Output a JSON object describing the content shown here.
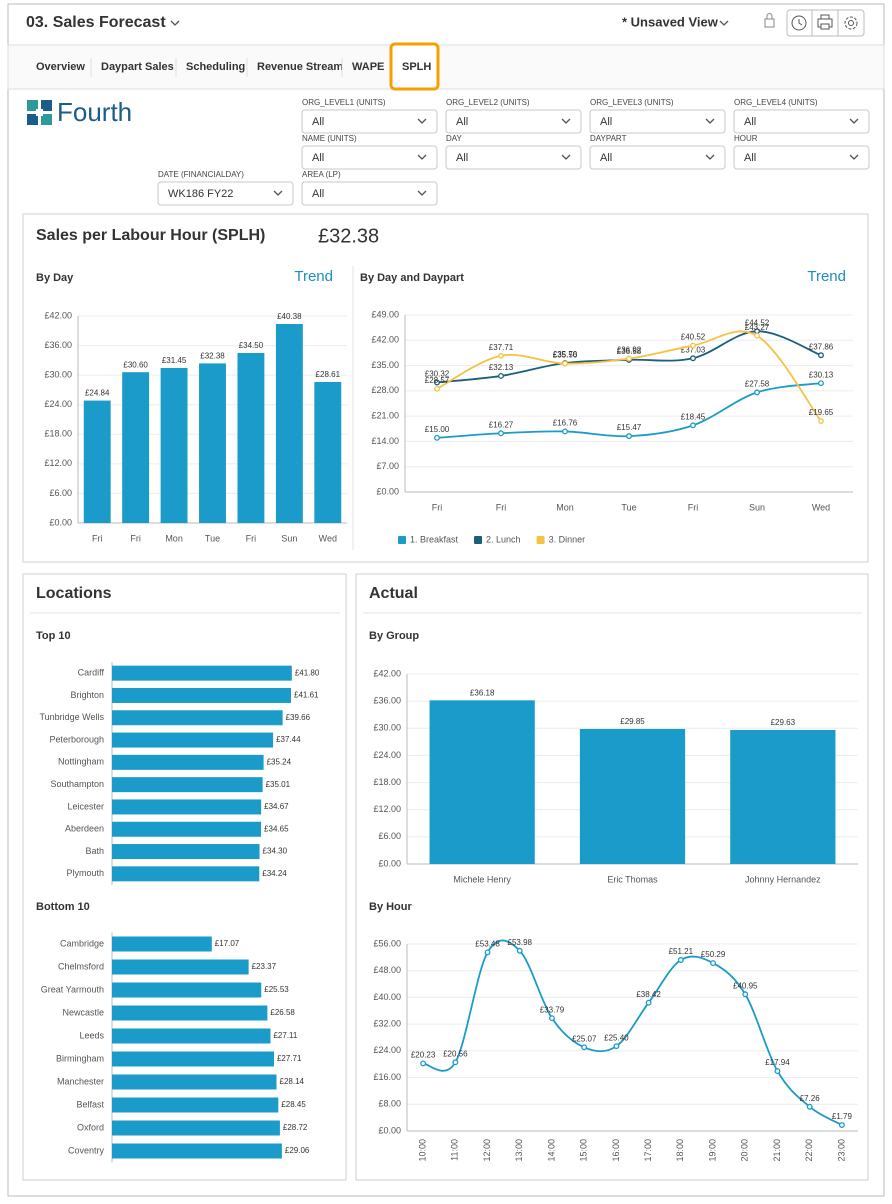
{
  "header": {
    "title": "03. Sales Forecast",
    "view": "* Unsaved View"
  },
  "tabs": [
    "Overview",
    "Daypart Sales",
    "Scheduling",
    "Revenue Stream",
    "WAPE",
    "SPLH"
  ],
  "logo": {
    "text": "Fourth"
  },
  "filters": [
    {
      "label": "ORG_LEVEL1 (UNITS)",
      "value": "All"
    },
    {
      "label": "ORG_LEVEL2 (UNITS)",
      "value": "All"
    },
    {
      "label": "ORG_LEVEL3 (UNITS)",
      "value": "All"
    },
    {
      "label": "ORG_LEVEL4 (UNITS)",
      "value": "All"
    },
    {
      "label": "NAME (UNITS)",
      "value": "All"
    },
    {
      "label": "DAY",
      "value": "All"
    },
    {
      "label": "DAYPART",
      "value": "All"
    },
    {
      "label": "HOUR",
      "value": "All"
    },
    {
      "label": "DATE (FINANCIALDAY)",
      "value": "WK186 FY22"
    },
    {
      "label": "AREA (LP)",
      "value": "All"
    }
  ],
  "panels": [
    {
      "title": "Sales per Labour Hour (SPLH)",
      "value": "£32.38"
    },
    {
      "title": "Locations"
    },
    {
      "title": "Actual"
    }
  ],
  "chart_data": [
    {
      "type": "bar",
      "title": "By Day",
      "link": "Trend",
      "color": "#1a9bc9",
      "categories": [
        "Fri",
        "Fri",
        "Mon",
        "Tue",
        "Fri",
        "Sun",
        "Wed"
      ],
      "values": [
        24.84,
        30.6,
        31.45,
        32.38,
        34.5,
        40.38,
        28.61
      ],
      "value_labels": [
        "£24.84",
        "£30.60",
        "£31.45",
        "£32.38",
        "£34.50",
        "£40.38",
        "£28.61"
      ],
      "ylim": [
        0,
        42
      ],
      "yticks": [
        {
          "value": 0,
          "label": "£0.00"
        },
        {
          "value": 6,
          "label": "£6.00"
        },
        {
          "value": 12,
          "label": "£12.00"
        },
        {
          "value": 18,
          "label": "£18.00"
        },
        {
          "value": 24,
          "label": "£24.00"
        },
        {
          "value": 30,
          "label": "£30.00"
        },
        {
          "value": 36,
          "label": "£36.00"
        },
        {
          "value": 42,
          "label": "£42.00"
        }
      ],
      "grid": true
    },
    {
      "type": "line",
      "title": "By Day and Daypart",
      "link": "Trend",
      "smooth": true,
      "categories": [
        "Fri",
        "Fri",
        "Mon",
        "Tue",
        "Fri",
        "Sun",
        "Wed"
      ],
      "series": [
        {
          "name": "1. Breakfast",
          "color": "#1a9bc9",
          "values": [
            15.0,
            16.27,
            16.76,
            15.47,
            18.45,
            27.58,
            30.13
          ],
          "value_labels": [
            "£15.00",
            "£16.27",
            "£16.76",
            "£15.47",
            "£18.45",
            "£27.58",
            "£30.13"
          ]
        },
        {
          "name": "2. Lunch",
          "color": "#1b5f7c",
          "values": [
            30.32,
            32.13,
            35.7,
            36.58,
            37.03,
            44.52,
            37.86
          ],
          "value_labels": [
            "£30.32",
            "£32.13",
            "£35.70",
            "£36.58",
            "£37.03",
            "£44.52",
            "£37.86"
          ]
        },
        {
          "name": "3. Dinner",
          "color": "#f5c242",
          "values": [
            28.57,
            37.71,
            35.56,
            36.92,
            40.52,
            43.27,
            19.65
          ],
          "value_labels": [
            "£28.57",
            "£37.71",
            "£35.56",
            "£36.92",
            "£40.52",
            "£43.27",
            "£19.65"
          ]
        }
      ],
      "ylim": [
        0,
        49
      ],
      "yticks": [
        {
          "value": 0,
          "label": "£0.00"
        },
        {
          "value": 7,
          "label": "£7.00"
        },
        {
          "value": 14,
          "label": "£14.00"
        },
        {
          "value": 21,
          "label": "£21.00"
        },
        {
          "value": 28,
          "label": "£28.00"
        },
        {
          "value": 35,
          "label": "£35.00"
        },
        {
          "value": 42,
          "label": "£42.00"
        },
        {
          "value": 49,
          "label": "£49.00"
        }
      ],
      "grid": true,
      "legend": "bottom"
    },
    {
      "type": "bar",
      "horizontal": true,
      "title": "Top 10",
      "color": "#1a9bc9",
      "categories": [
        "Cardiff",
        "Brighton",
        "Tunbridge Wells",
        "Peterborough",
        "Nottingham",
        "Southampton",
        "Leicester",
        "Aberdeen",
        "Bath",
        "Plymouth"
      ],
      "values": [
        41.8,
        41.61,
        39.66,
        37.44,
        35.24,
        35.01,
        34.67,
        34.65,
        34.3,
        34.24
      ],
      "value_labels": [
        "£41.80",
        "£41.61",
        "£39.66",
        "£37.44",
        "£35.24",
        "£35.01",
        "£34.67",
        "£34.65",
        "£34.30",
        "£34.24"
      ],
      "xlim": [
        0,
        53
      ]
    },
    {
      "type": "bar",
      "horizontal": true,
      "title": "Bottom 10",
      "color": "#1a9bc9",
      "categories": [
        "Cambridge",
        "Chelmsford",
        "Great Yarmouth",
        "Newcastle",
        "Leeds",
        "Birmingham",
        "Manchester",
        "Belfast",
        "Oxford",
        "Coventry"
      ],
      "values": [
        17.07,
        23.37,
        25.53,
        26.58,
        27.11,
        27.71,
        28.14,
        28.45,
        28.72,
        29.06
      ],
      "value_labels": [
        "£17.07",
        "£23.37",
        "£25.53",
        "£26.58",
        "£27.11",
        "£27.71",
        "£28.14",
        "£28.45",
        "£28.72",
        "£29.06"
      ],
      "xlim": [
        0,
        39
      ]
    },
    {
      "type": "bar",
      "title": "By Group",
      "color": "#1a9bc9",
      "categories": [
        "Michele Henry",
        "Eric Thomas",
        "Johnny Hernandez"
      ],
      "values": [
        36.18,
        29.85,
        29.63
      ],
      "value_labels": [
        "£36.18",
        "£29.85",
        "£29.63"
      ],
      "ylim": [
        0,
        42
      ],
      "yticks": [
        {
          "value": 0,
          "label": "£0.00"
        },
        {
          "value": 6,
          "label": "£6.00"
        },
        {
          "value": 12,
          "label": "£12.00"
        },
        {
          "value": 18,
          "label": "£18.00"
        },
        {
          "value": 24,
          "label": "£24.00"
        },
        {
          "value": 30,
          "label": "£30.00"
        },
        {
          "value": 36,
          "label": "£36.00"
        },
        {
          "value": 42,
          "label": "£42.00"
        }
      ],
      "grid": true
    },
    {
      "type": "line",
      "title": "By Hour",
      "smooth": true,
      "color": "#1a9bc9",
      "categories": [
        "10:00",
        "11:00",
        "12:00",
        "13:00",
        "14:00",
        "15:00",
        "16:00",
        "17:00",
        "18:00",
        "19:00",
        "20:00",
        "21:00",
        "22:00",
        "23:00"
      ],
      "values": [
        20.23,
        20.56,
        53.48,
        53.98,
        33.79,
        25.07,
        25.4,
        38.42,
        51.21,
        50.29,
        40.95,
        17.94,
        7.26,
        1.79
      ],
      "value_labels": [
        "£20.23",
        "£20.56",
        "£53.48",
        "£53.98",
        "£33.79",
        "£25.07",
        "£25.40",
        "£38.42",
        "£51.21",
        "£50.29",
        "£40.95",
        "£17.94",
        "£7.26",
        "£1.79"
      ],
      "ylim": [
        0,
        56
      ],
      "yticks": [
        {
          "value": 0,
          "label": "£0.00"
        },
        {
          "value": 8,
          "label": "£8.00"
        },
        {
          "value": 16,
          "label": "£16.00"
        },
        {
          "value": 24,
          "label": "£24.00"
        },
        {
          "value": 32,
          "label": "£32.00"
        },
        {
          "value": 40,
          "label": "£40.00"
        },
        {
          "value": 48,
          "label": "£48.00"
        },
        {
          "value": 56,
          "label": "£56.00"
        }
      ],
      "grid": true,
      "rotate_labels": true
    }
  ]
}
